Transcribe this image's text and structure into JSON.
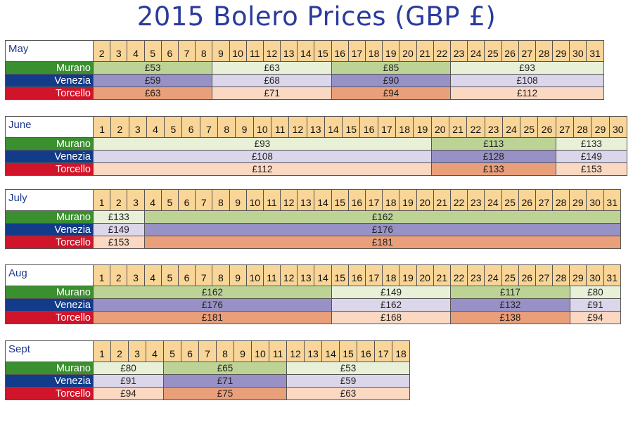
{
  "title": "2015 Bolero Prices (GBP £)",
  "rows": [
    "Murano",
    "Venezia",
    "Torcello"
  ],
  "colors": {
    "murano_label": "#3a8f2f",
    "venezia_label": "#123b8a",
    "torcello_label": "#d0142a",
    "header_fill": "#f9d597",
    "title_color": "#2b3b9c"
  },
  "months": [
    {
      "name": "May",
      "days": [
        "2",
        "3",
        "4",
        "5",
        "6",
        "7",
        "8",
        "9",
        "10",
        "11",
        "12",
        "13",
        "14",
        "15",
        "16",
        "17",
        "18",
        "19",
        "20",
        "21",
        "22",
        "23",
        "24",
        "25",
        "26",
        "27",
        "28",
        "29",
        "30",
        "31"
      ],
      "periods": [
        {
          "span": 7,
          "shade": "dark",
          "prices": [
            "£53",
            "£59",
            "£63"
          ]
        },
        {
          "span": 7,
          "shade": "light",
          "prices": [
            "£63",
            "£68",
            "£71"
          ]
        },
        {
          "span": 7,
          "shade": "dark",
          "prices": [
            "£85",
            "£90",
            "£94"
          ]
        },
        {
          "span": 9,
          "shade": "light",
          "prices": [
            "£93",
            "£108",
            "£112"
          ]
        }
      ]
    },
    {
      "name": "June",
      "days": [
        "1",
        "2",
        "3",
        "4",
        "5",
        "6",
        "7",
        "8",
        "9",
        "10",
        "11",
        "12",
        "13",
        "14",
        "15",
        "16",
        "17",
        "18",
        "19",
        "20",
        "21",
        "22",
        "23",
        "24",
        "25",
        "26",
        "27",
        "28",
        "29",
        "30"
      ],
      "periods": [
        {
          "span": 19,
          "shade": "light",
          "prices": [
            "£93",
            "£108",
            "£112"
          ]
        },
        {
          "span": 7,
          "shade": "dark",
          "prices": [
            "£113",
            "£128",
            "£133"
          ]
        },
        {
          "span": 4,
          "shade": "light",
          "prices": [
            "£133",
            "£149",
            "£153"
          ]
        }
      ]
    },
    {
      "name": "July",
      "days": [
        "1",
        "2",
        "3",
        "4",
        "5",
        "6",
        "7",
        "8",
        "9",
        "10",
        "11",
        "12",
        "13",
        "14",
        "15",
        "16",
        "17",
        "18",
        "19",
        "20",
        "21",
        "22",
        "23",
        "24",
        "25",
        "26",
        "27",
        "28",
        "29",
        "30",
        "31"
      ],
      "periods": [
        {
          "span": 3,
          "shade": "light",
          "prices": [
            "£133",
            "£149",
            "£153"
          ]
        },
        {
          "span": 28,
          "shade": "dark",
          "prices": [
            "£162",
            "£176",
            "£181"
          ]
        }
      ]
    },
    {
      "name": "Aug",
      "days": [
        "1",
        "2",
        "3",
        "4",
        "5",
        "6",
        "7",
        "8",
        "9",
        "10",
        "11",
        "12",
        "13",
        "14",
        "15",
        "16",
        "17",
        "18",
        "19",
        "20",
        "21",
        "22",
        "23",
        "24",
        "25",
        "26",
        "27",
        "28",
        "29",
        "30",
        "31"
      ],
      "periods": [
        {
          "span": 14,
          "shade": "dark",
          "prices": [
            "£162",
            "£176",
            "£181"
          ]
        },
        {
          "span": 7,
          "shade": "light",
          "prices": [
            "£149",
            "£162",
            "£168"
          ]
        },
        {
          "span": 7,
          "shade": "dark",
          "prices": [
            "£117",
            "£132",
            "£138"
          ]
        },
        {
          "span": 3,
          "shade": "light",
          "prices": [
            "£80",
            "£91",
            "£94"
          ]
        }
      ]
    },
    {
      "name": "Sept",
      "days": [
        "1",
        "2",
        "3",
        "4",
        "5",
        "6",
        "7",
        "8",
        "9",
        "10",
        "11",
        "12",
        "13",
        "14",
        "15",
        "16",
        "17",
        "18"
      ],
      "periods": [
        {
          "span": 4,
          "shade": "light",
          "prices": [
            "£80",
            "£91",
            "£94"
          ]
        },
        {
          "span": 7,
          "shade": "dark",
          "prices": [
            "£65",
            "£71",
            "£75"
          ]
        },
        {
          "span": 7,
          "shade": "light",
          "prices": [
            "£53",
            "£59",
            "£63"
          ]
        }
      ]
    }
  ]
}
